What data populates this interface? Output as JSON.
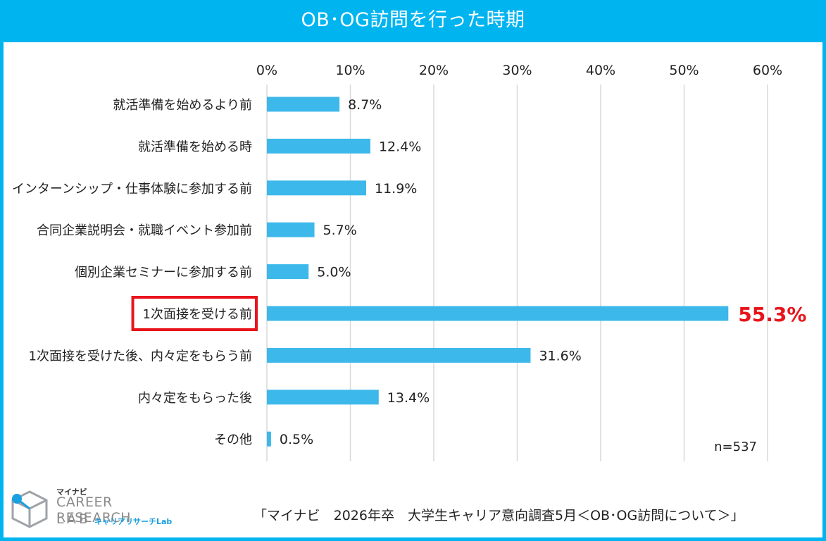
{
  "title": "OB･OG訪問を行った時期",
  "chart_data": {
    "type": "bar",
    "orientation": "horizontal",
    "categories": [
      "就活準備を始めるより前",
      "就活準備を始める時",
      "インターンシップ・仕事体験に参加する前",
      "合同企業説明会・就職イベント参加前",
      "個別企業セミナーに参加する前",
      "1次面接を受ける前",
      "1次面接を受けた後、内々定をもらう前",
      "内々定をもらった後",
      "その他"
    ],
    "values": [
      8.7,
      12.4,
      11.9,
      5.7,
      5.0,
      55.3,
      31.6,
      13.4,
      0.5
    ],
    "value_labels": [
      "8.7%",
      "12.4%",
      "11.9%",
      "5.7%",
      "5.0%",
      "55.3%",
      "31.6%",
      "13.4%",
      "0.5%"
    ],
    "xlim": [
      0,
      60
    ],
    "xticks": [
      "0%",
      "10%",
      "20%",
      "30%",
      "40%",
      "50%",
      "60%"
    ],
    "grid": true,
    "highlight_index": 5,
    "note": "n=537"
  },
  "colors": {
    "frame": "#00b4f0",
    "bar": "#3db8ea",
    "highlight": "#e8141b",
    "grid": "#d9d9d9"
  },
  "logo": {
    "brand_small": "マイナビ",
    "line1": "CAREER RESEARCH",
    "line2": "LAB",
    "jp": "キャリアリサーチLab"
  },
  "source": "「マイナビ　2026年卒　大学生キャリア意向調査5月＜OB･OG訪問について＞」"
}
